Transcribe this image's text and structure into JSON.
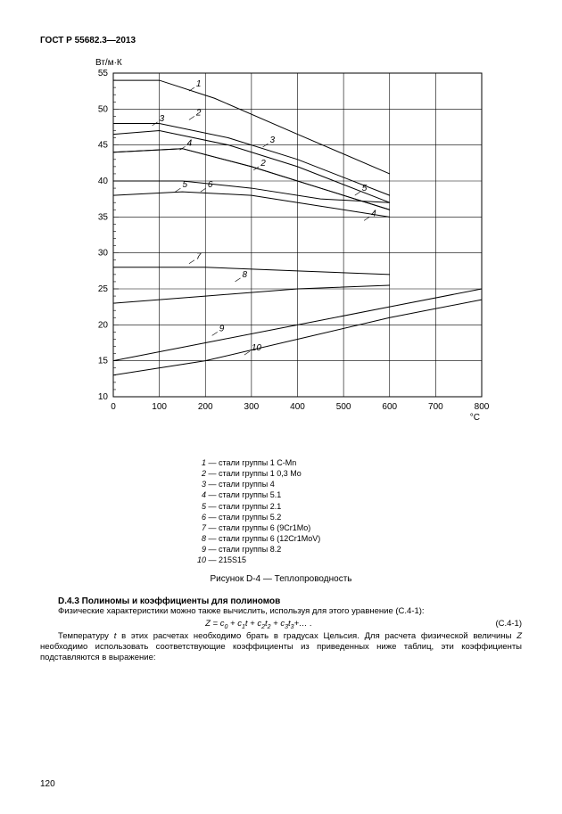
{
  "doc_header": "ГОСТ Р 55682.3—2013",
  "page_number": "120",
  "chart": {
    "type": "line",
    "y_unit": "Вт/м·К",
    "x_unit": "°C",
    "background_color": "#ffffff",
    "grid_color": "#000000",
    "axis_color": "#000000",
    "line_color": "#000000",
    "line_width": 1.0,
    "label_fontsize": 10,
    "xlim": [
      0,
      800
    ],
    "ylim": [
      10,
      55
    ],
    "xtick_step": 100,
    "ytick_step": 5,
    "minor_y_step": 1,
    "x_ticks": [
      "0",
      "100",
      "200",
      "300",
      "400",
      "500",
      "600",
      "700",
      "800"
    ],
    "y_ticks": [
      "10",
      "15",
      "20",
      "25",
      "30",
      "35",
      "40",
      "45",
      "50",
      "55"
    ],
    "series": [
      {
        "id": "1",
        "label_x": 180,
        "label_y": 53,
        "points": [
          [
            0,
            54
          ],
          [
            100,
            54
          ],
          [
            220,
            51.5
          ],
          [
            400,
            46.5
          ],
          [
            600,
            41
          ]
        ]
      },
      {
        "id": "2",
        "label_x": 180,
        "label_y": 49,
        "points": [
          [
            0,
            48
          ],
          [
            100,
            48
          ],
          [
            250,
            46
          ],
          [
            400,
            43
          ],
          [
            600,
            38
          ]
        ]
      },
      {
        "id": "3",
        "label_x": 100,
        "label_y": 48,
        "points": [
          [
            0,
            46.5
          ],
          [
            100,
            47
          ],
          [
            250,
            45
          ],
          [
            400,
            42
          ],
          [
            600,
            37
          ]
        ]
      },
      {
        "id": "4",
        "label_x": 160,
        "label_y": 44.5,
        "points": [
          [
            0,
            44
          ],
          [
            150,
            44.5
          ],
          [
            300,
            42
          ],
          [
            450,
            39
          ],
          [
            600,
            36
          ]
        ]
      },
      {
        "id": "3b",
        "label_x": 340,
        "label_y": 45,
        "points": [
          [
            0,
            44
          ],
          [
            150,
            44.5
          ],
          [
            300,
            42
          ],
          [
            450,
            39
          ],
          [
            600,
            36
          ]
        ]
      },
      {
        "id": "5",
        "label_x": 150,
        "label_y": 39,
        "points": [
          [
            0,
            40
          ],
          [
            150,
            40
          ],
          [
            300,
            39
          ],
          [
            450,
            37.5
          ],
          [
            600,
            37
          ]
        ]
      },
      {
        "id": "6",
        "label_x": 205,
        "label_y": 39,
        "points": [
          [
            0,
            38
          ],
          [
            150,
            38.5
          ],
          [
            300,
            38
          ],
          [
            450,
            36.5
          ],
          [
            600,
            35
          ]
        ]
      },
      {
        "id": "7",
        "label_x": 180,
        "label_y": 29,
        "points": [
          [
            0,
            28
          ],
          [
            200,
            28
          ],
          [
            400,
            27.5
          ],
          [
            600,
            27
          ]
        ]
      },
      {
        "id": "8",
        "label_x": 280,
        "label_y": 26.5,
        "points": [
          [
            0,
            23
          ],
          [
            200,
            24
          ],
          [
            400,
            25
          ],
          [
            600,
            25.5
          ]
        ]
      },
      {
        "id": "9",
        "label_x": 230,
        "label_y": 19,
        "points": [
          [
            0,
            15
          ],
          [
            200,
            17.5
          ],
          [
            400,
            20
          ],
          [
            600,
            22.5
          ],
          [
            800,
            25
          ]
        ]
      },
      {
        "id": "10",
        "label_x": 300,
        "label_y": 16.3,
        "points": [
          [
            0,
            13
          ],
          [
            200,
            15
          ],
          [
            400,
            18
          ],
          [
            600,
            21
          ],
          [
            800,
            23.5
          ]
        ]
      }
    ],
    "series_labels": [
      {
        "text": "1",
        "x": 180,
        "y": 53
      },
      {
        "text": "2",
        "x": 180,
        "y": 49
      },
      {
        "text": "3",
        "x": 100,
        "y": 48.2
      },
      {
        "text": "4",
        "x": 160,
        "y": 44.8
      },
      {
        "text": "3",
        "x": 340,
        "y": 45.2
      },
      {
        "text": "2",
        "x": 320,
        "y": 42
      },
      {
        "text": "5",
        "x": 150,
        "y": 39
      },
      {
        "text": "6",
        "x": 205,
        "y": 39
      },
      {
        "text": "5",
        "x": 540,
        "y": 38.5
      },
      {
        "text": "4",
        "x": 560,
        "y": 35
      },
      {
        "text": "7",
        "x": 180,
        "y": 29
      },
      {
        "text": "8",
        "x": 280,
        "y": 26.5
      },
      {
        "text": "9",
        "x": 230,
        "y": 19
      },
      {
        "text": "10",
        "x": 300,
        "y": 16.3
      }
    ]
  },
  "legend": [
    {
      "num": "1",
      "text": "— стали группы 1 C-Mn"
    },
    {
      "num": "2",
      "text": "— стали группы 1 0,3 Mo"
    },
    {
      "num": "3",
      "text": "— стали группы 4"
    },
    {
      "num": "4",
      "text": "— стали группы 5.1"
    },
    {
      "num": "5",
      "text": "— стали группы 2.1"
    },
    {
      "num": "6",
      "text": "— стали группы 5.2"
    },
    {
      "num": "7",
      "text": "— стали группы 6 (9Cr1Mo)"
    },
    {
      "num": "8",
      "text": "— стали группы 6 (12Cr1MoV)"
    },
    {
      "num": "9",
      "text": "— стали группы 8.2"
    },
    {
      "num": "10",
      "text": "— 215S15"
    }
  ],
  "figure_caption": "Рисунок D-4 — Теплопроводность",
  "section_title": "D.4.3 Полиномы и коэффициенты для полиномов",
  "para1": "Физические характеристики можно также вычислить, используя для этого уравнение (C.4-1):",
  "equation_text": "Z = c₀ + c₁t + c₂t₂ + c₃t₃+… .",
  "equation_num": "(C.4-1)",
  "para2_a": "Температуру ",
  "para2_t": "t",
  "para2_b": " в этих расчетах необходимо брать в градусах Цельсия. Для расчета физической величины ",
  "para2_z": "Z",
  "para2_c": " необходимо использовать соответствующие коэффициенты из приведенных ниже таблиц, эти коэффициенты подставляются в выражение:"
}
